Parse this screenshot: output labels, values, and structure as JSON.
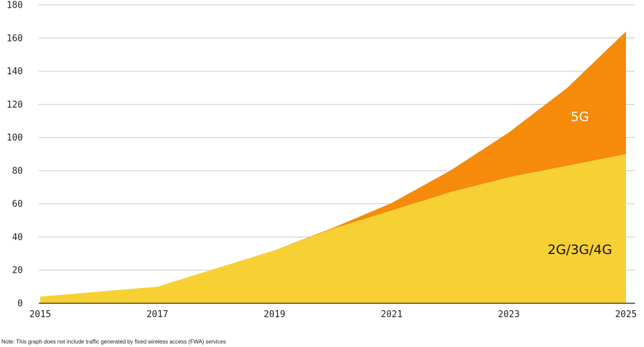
{
  "chart_data": {
    "type": "area",
    "stacked": true,
    "x": [
      2015,
      2016,
      2017,
      2018,
      2019,
      2020,
      2021,
      2022,
      2023,
      2024,
      2025
    ],
    "x_tick_labels": [
      "2015",
      "2017",
      "2019",
      "2021",
      "2023",
      "2025"
    ],
    "y_tick_labels": [
      "0",
      "20",
      "40",
      "60",
      "80",
      "100",
      "120",
      "140",
      "160",
      "180"
    ],
    "ylim": [
      0,
      180
    ],
    "xlim": [
      2015,
      2025
    ],
    "grid": true,
    "series": [
      {
        "name": "2G/3G/4G",
        "color": "#f7d033",
        "label_color": "#111111",
        "values": [
          4,
          7,
          10,
          21,
          32,
          45,
          56,
          67,
          76,
          83,
          90
        ]
      },
      {
        "name": "5G",
        "color": "#f58a0b",
        "label_color": "#ffffff",
        "values": [
          0,
          0,
          0,
          0,
          0,
          0.5,
          4.5,
          13,
          27,
          47,
          74
        ]
      }
    ],
    "title": "",
    "xlabel": "",
    "ylabel": ""
  },
  "note": "Note: This graph does not include traffic generated by fixed wireless access (FWA) services"
}
